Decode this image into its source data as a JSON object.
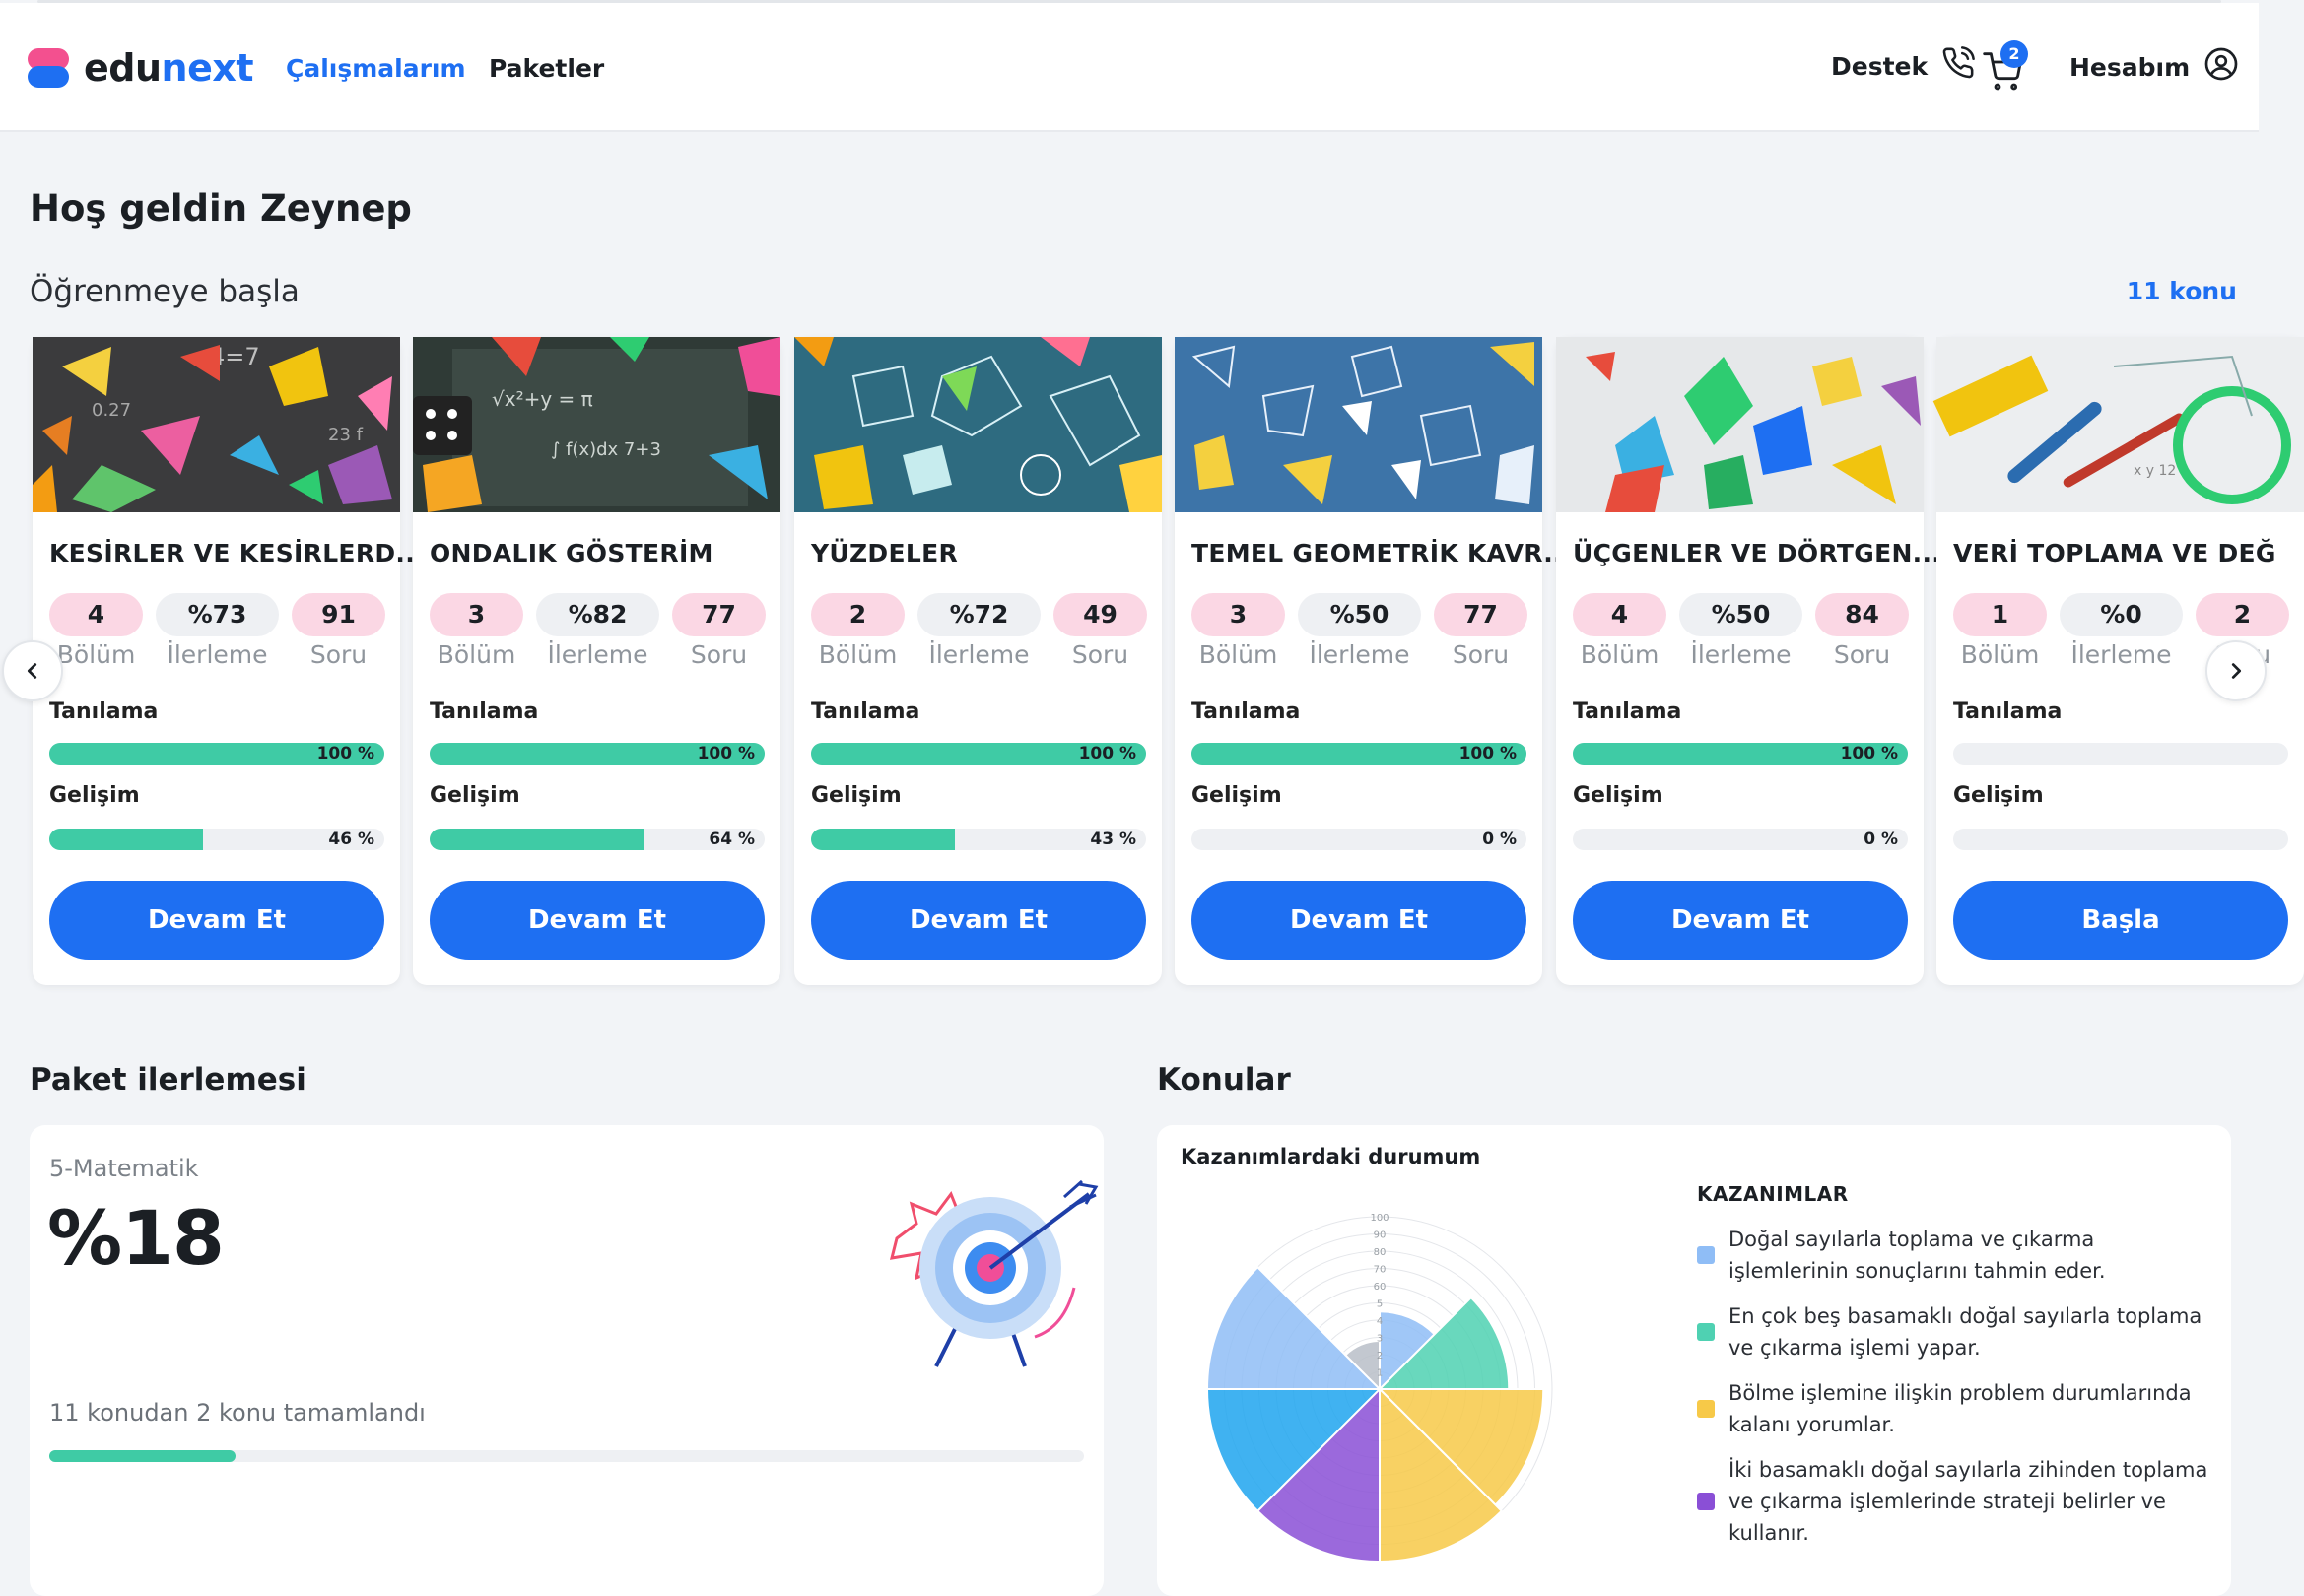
{
  "header": {
    "logo_prefix": "edu",
    "logo_suffix": "next",
    "nav": [
      "Çalışmalarım",
      "Paketler"
    ],
    "support_label": "Destek",
    "cart_count": "2",
    "account_label": "Hesabım"
  },
  "greeting": "Hoş geldin Zeynep",
  "learn": {
    "title": "Öğrenmeye başla",
    "count_link": "11 konu"
  },
  "cards": [
    {
      "title": "KESİRLER VE KESİRLERD...",
      "sections": "4",
      "progress": "%73",
      "questions": "91",
      "diag_pct": 100,
      "diag_text": "100 %",
      "dev_pct": 46,
      "dev_text": "46 %",
      "button": "Devam Et"
    },
    {
      "title": "ONDALIK GÖSTERİM",
      "sections": "3",
      "progress": "%82",
      "questions": "77",
      "diag_pct": 100,
      "diag_text": "100 %",
      "dev_pct": 64,
      "dev_text": "64 %",
      "button": "Devam Et"
    },
    {
      "title": "YÜZDELER",
      "sections": "2",
      "progress": "%72",
      "questions": "49",
      "diag_pct": 100,
      "diag_text": "100 %",
      "dev_pct": 43,
      "dev_text": "43 %",
      "button": "Devam Et"
    },
    {
      "title": "TEMEL GEOMETRİK KAVR...",
      "sections": "3",
      "progress": "%50",
      "questions": "77",
      "diag_pct": 100,
      "diag_text": "100 %",
      "dev_pct": 0,
      "dev_text": "0 %",
      "button": "Devam Et"
    },
    {
      "title": "ÜÇGENLER VE DÖRTGEN...",
      "sections": "4",
      "progress": "%50",
      "questions": "84",
      "diag_pct": 100,
      "diag_text": "100 %",
      "dev_pct": 0,
      "dev_text": "0 %",
      "button": "Devam Et"
    },
    {
      "title": "VERİ TOPLAMA VE DEĞ",
      "sections": "1",
      "progress": "%0",
      "questions": "2",
      "diag_pct": 0,
      "diag_text": "",
      "dev_pct": 0,
      "dev_text": "",
      "button": "Başla"
    }
  ],
  "labels": {
    "sections": "Bölüm",
    "progress": "İlerleme",
    "questions": "Soru",
    "diagnosis": "Tanılama",
    "development": "Gelişim"
  },
  "package": {
    "section_title": "Paket ilerlemesi",
    "name": "5-Matematik",
    "percent": "%18",
    "summary": "11 konudan 2 konu tamamlandı",
    "completed_fraction": 0.18
  },
  "topics": {
    "section_title": "Konular",
    "chart_title": "Kazanımlardaki durumum",
    "legend_title": "KAZANIMLAR",
    "legend": [
      {
        "text": "Doğal sayılarla toplama ve çıkarma işlemlerinin sonuçlarını tahmin eder.",
        "color": "#8fbdf6"
      },
      {
        "text": "En çok beş basamaklı doğal sayılarla toplama ve çıkarma işlemi yapar.",
        "color": "#4fd1b2"
      },
      {
        "text": "Bölme işlemine ilişkin problem durumlarında kalanı yorumlar.",
        "color": "#f7c948"
      },
      {
        "text": "İki basamaklı doğal sayılarla zihinden toplama ve çıkarma işlemlerinde strateji belirler ve kullanır.",
        "color": "#8a4fd6"
      }
    ]
  },
  "chart_data": {
    "type": "polar-area",
    "title": "Kazanımlardaki durumum",
    "rlim": [
      0,
      100
    ],
    "ticks": [
      "100",
      "90",
      "80",
      "70",
      "60",
      "5",
      "4",
      "3",
      "2",
      "1"
    ],
    "segments": [
      {
        "color": "#8fbdf6",
        "value": 45
      },
      {
        "color": "#4fd1b2",
        "value": 75
      },
      {
        "color": "#f7c948",
        "value": 95
      },
      {
        "color": "#f7c948",
        "value": 100
      },
      {
        "color": "#8a4fd6",
        "value": 100
      },
      {
        "color": "#1ea5ee",
        "value": 100
      },
      {
        "color": "#8fbdf6",
        "value": 100
      },
      {
        "color": "#b8bec8",
        "value": 28
      }
    ]
  }
}
